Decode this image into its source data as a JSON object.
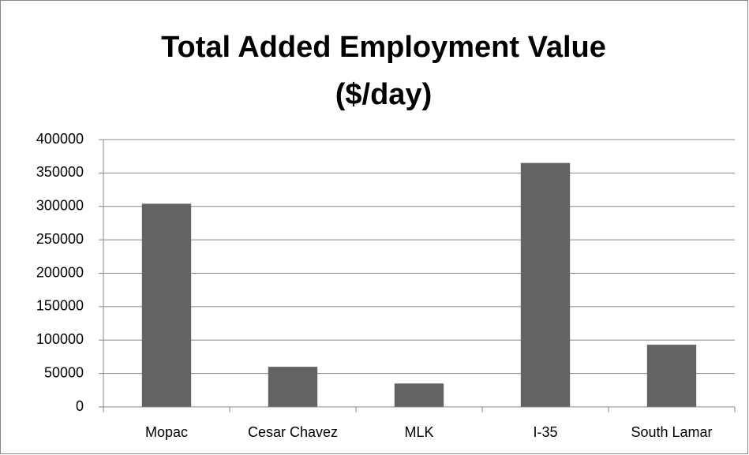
{
  "chart_data": {
    "type": "bar",
    "title": [
      "Total Added Employment Value",
      "($/day)"
    ],
    "categories": [
      "Mopac",
      "Cesar Chavez",
      "MLK",
      "I-35",
      "South Lamar"
    ],
    "values": [
      304000,
      60000,
      35000,
      365000,
      93000
    ],
    "color": "#636363",
    "ylim": [
      0,
      400000
    ],
    "yticks": [
      0,
      50000,
      100000,
      150000,
      200000,
      250000,
      300000,
      350000,
      400000
    ],
    "grid": true
  }
}
